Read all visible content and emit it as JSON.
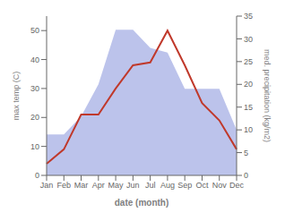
{
  "chart_data": {
    "type": "line",
    "xlabel": "date (month)",
    "ylabel": "max temp (C)",
    "y2label": "med. precipitation (kg/m2)",
    "categories": [
      "Jan",
      "Feb",
      "Mar",
      "Apr",
      "May",
      "Jun",
      "Jul",
      "Aug",
      "Sep",
      "Oct",
      "Nov",
      "Dec"
    ],
    "series": [
      {
        "type": "area",
        "axis": "y2",
        "color": "#b0b8e8",
        "values": [
          9,
          9,
          13,
          20,
          32,
          32,
          28,
          27,
          19,
          19,
          19,
          10
        ]
      },
      {
        "type": "line",
        "color": "#c0392b",
        "values": [
          4,
          9,
          21,
          21,
          30,
          38,
          39,
          50,
          38,
          25,
          19,
          9
        ]
      }
    ],
    "ylim": [
      0,
      55
    ],
    "yticks": [
      0,
      10,
      20,
      30,
      40,
      50
    ],
    "y2lim": [
      0,
      35
    ],
    "y2ticks": [
      0,
      5,
      10,
      15,
      20,
      25,
      30,
      35
    ],
    "grid": false
  }
}
